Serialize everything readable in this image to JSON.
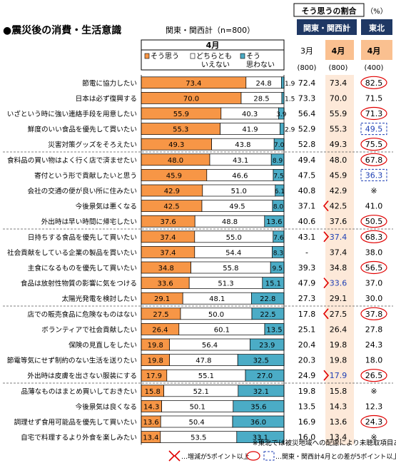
{
  "chart_data": {
    "type": "bar",
    "stacked": true,
    "title": "●震災後の消費・生活意識",
    "subtitle": "関東・関西計（n=800）",
    "panel_label": "4月",
    "series": [
      {
        "name": "そう思う",
        "color": "#F79646"
      },
      {
        "name": "どちらともいえない",
        "color": "#FFFFFF"
      },
      {
        "name": "そう思わない",
        "color": "#4BACC6"
      }
    ],
    "xlim": [
      0,
      100
    ],
    "right_table": {
      "header": "そう思うの割合",
      "unit": "（%）",
      "group_kantou": "関東・関西計",
      "group_tohoku": "東北",
      "col_labels": [
        "3月",
        "4月",
        "4月"
      ],
      "n_labels": [
        "(800)",
        "(800)",
        "(400)"
      ]
    },
    "rows": [
      {
        "label": "節電に協力したい",
        "values": [
          73.4,
          24.8,
          1.9
        ],
        "mar": "72.4",
        "apr": "73.4",
        "tohoku": "82.5",
        "tohoku_mark": "circle",
        "change": ""
      },
      {
        "label": "日本は必ず復興する",
        "values": [
          70.0,
          28.5,
          1.5
        ],
        "mar": "73.3",
        "apr": "70.0",
        "tohoku": "71.5",
        "tohoku_mark": "",
        "change": ""
      },
      {
        "label": "いざという時に強い連絡手段を用意したい",
        "values": [
          55.9,
          40.3,
          3.9
        ],
        "mar": "56.4",
        "apr": "55.9",
        "tohoku": "71.3",
        "tohoku_mark": "circle",
        "change": ""
      },
      {
        "label": "鮮度のいい食品を優先して買いたい",
        "values": [
          55.3,
          41.9,
          2.9
        ],
        "mar": "52.9",
        "apr": "55.3",
        "tohoku": "49.5",
        "tohoku_mark": "box",
        "change": ""
      },
      {
        "label": "災害対策グッズをそろえたい",
        "values": [
          49.3,
          43.8,
          7.0
        ],
        "mar": "52.8",
        "apr": "49.3",
        "tohoku": "75.5",
        "tohoku_mark": "circle",
        "change": ""
      },
      {
        "label": "食料品の買い物はよく行く店で済ませたい",
        "values": [
          48.0,
          43.1,
          8.9
        ],
        "mar": "49.4",
        "apr": "48.0",
        "tohoku": "67.8",
        "tohoku_mark": "circle",
        "change": ""
      },
      {
        "label": "寄付という形で貢献したいと思う",
        "values": [
          45.9,
          46.6,
          7.5
        ],
        "mar": "47.5",
        "apr": "45.9",
        "tohoku": "36.3",
        "tohoku_mark": "box",
        "change": ""
      },
      {
        "label": "会社の交通の便が良い所に住みたい",
        "values": [
          42.9,
          51.0,
          6.1
        ],
        "mar": "40.8",
        "apr": "42.9",
        "tohoku": "※",
        "tohoku_mark": "",
        "change": ""
      },
      {
        "label": "今後景気は悪くなる",
        "values": [
          42.5,
          49.5,
          8.0
        ],
        "mar": "37.1",
        "apr": "42.5",
        "tohoku": "41.0",
        "tohoku_mark": "",
        "change": "up"
      },
      {
        "label": "外出時は早い時間に帰宅したい",
        "values": [
          37.6,
          48.8,
          13.6
        ],
        "mar": "40.6",
        "apr": "37.6",
        "tohoku": "50.5",
        "tohoku_mark": "circle",
        "change": ""
      },
      {
        "label": "日持ちする食品を優先して買いたい",
        "values": [
          37.4,
          55.0,
          7.6
        ],
        "mar": "43.1",
        "apr": "37.4",
        "tohoku": "68.3",
        "tohoku_mark": "circle",
        "change": "down"
      },
      {
        "label": "社会貢献をしている企業の製品を買いたい",
        "values": [
          37.4,
          54.4,
          8.3
        ],
        "mar": "-",
        "apr": "37.4",
        "tohoku": "38.0",
        "tohoku_mark": "",
        "change": ""
      },
      {
        "label": "主食になるものを優先して買いたい",
        "values": [
          34.8,
          55.8,
          9.5
        ],
        "mar": "39.3",
        "apr": "34.8",
        "tohoku": "56.5",
        "tohoku_mark": "circle",
        "change": ""
      },
      {
        "label": "食品は放射性物質の影響に気をつける",
        "values": [
          33.6,
          51.3,
          15.1
        ],
        "mar": "47.9",
        "apr": "33.6",
        "tohoku": "37.0",
        "tohoku_mark": "",
        "change": "down"
      },
      {
        "label": "太陽光発電を検討したい",
        "values": [
          29.1,
          48.1,
          22.8
        ],
        "mar": "27.3",
        "apr": "29.1",
        "tohoku": "30.0",
        "tohoku_mark": "",
        "change": ""
      },
      {
        "label": "店での販売食品に危険なものはない",
        "values": [
          27.5,
          50.0,
          22.5
        ],
        "mar": "17.8",
        "apr": "27.5",
        "tohoku": "37.8",
        "tohoku_mark": "circle",
        "change": "up"
      },
      {
        "label": "ボランティアで社会貢献したい",
        "values": [
          26.4,
          60.1,
          13.5
        ],
        "mar": "25.1",
        "apr": "26.4",
        "tohoku": "27.8",
        "tohoku_mark": "",
        "change": ""
      },
      {
        "label": "保険の見直しをしたい",
        "values": [
          19.8,
          56.4,
          23.9
        ],
        "mar": "20.4",
        "apr": "19.8",
        "tohoku": "24.3",
        "tohoku_mark": "",
        "change": ""
      },
      {
        "label": "節電等気にせず制約のない生活を送りたい",
        "values": [
          19.8,
          47.8,
          32.5
        ],
        "mar": "20.3",
        "apr": "19.8",
        "tohoku": "18.0",
        "tohoku_mark": "",
        "change": ""
      },
      {
        "label": "外出時は皮膚を出さない服装にする",
        "values": [
          17.9,
          55.1,
          27.0
        ],
        "mar": "24.9",
        "apr": "17.9",
        "tohoku": "26.5",
        "tohoku_mark": "circle",
        "change": "down"
      },
      {
        "label": "品薄なものはまとめ買いしておきたい",
        "values": [
          15.8,
          52.1,
          32.1
        ],
        "mar": "19.8",
        "apr": "15.8",
        "tohoku": "※",
        "tohoku_mark": "",
        "change": ""
      },
      {
        "label": "今後景気は良くなる",
        "values": [
          14.3,
          50.1,
          35.6
        ],
        "mar": "13.5",
        "apr": "14.3",
        "tohoku": "12.3",
        "tohoku_mark": "",
        "change": ""
      },
      {
        "label": "調理せず食用可能品を優先して買いたい",
        "values": [
          13.6,
          50.4,
          36.0
        ],
        "mar": "16.9",
        "apr": "13.6",
        "tohoku": "24.3",
        "tohoku_mark": "circle",
        "change": ""
      },
      {
        "label": "自宅で料理するより外食を楽しみたい",
        "values": [
          13.4,
          53.5,
          33.1
        ],
        "mar": "16.0",
        "apr": "13.4",
        "tohoku": "※",
        "tohoku_mark": "",
        "change": ""
      }
    ],
    "footnote": "※東北では被災地域への配慮により未聴取項目あり",
    "legend_change": "…増減が5ポイント以上",
    "legend_diff": "…関東・関西計4月との差が5ポイント以上"
  }
}
